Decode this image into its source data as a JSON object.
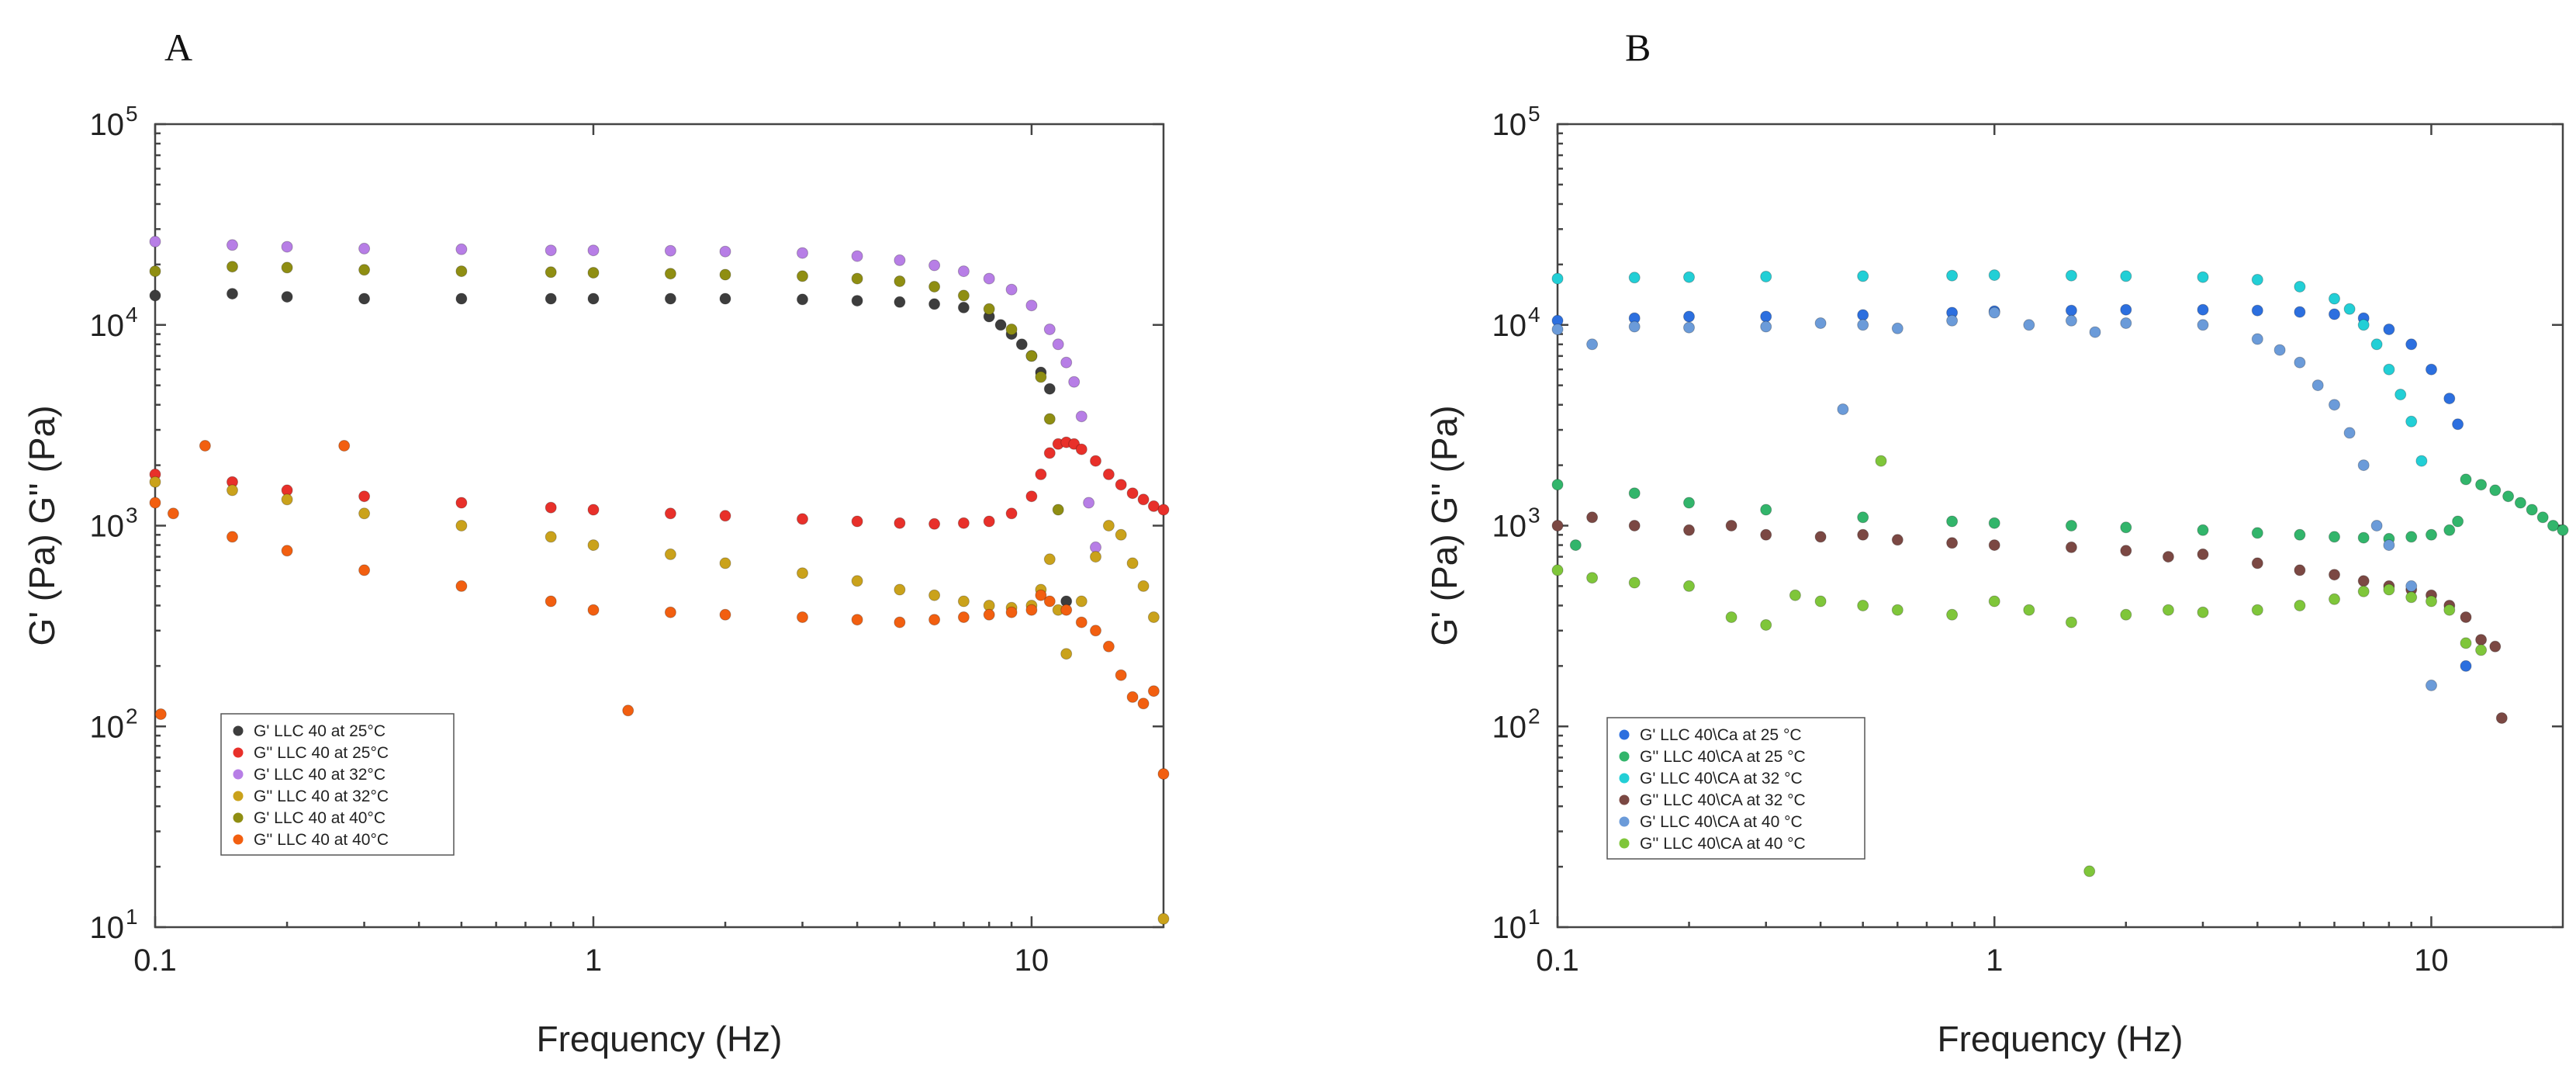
{
  "colors": {
    "dark": "#3d3d3d",
    "red": "#e8302a",
    "violet": "#b77ee6",
    "mustard": "#caa21b",
    "olive": "#8f8e12",
    "orange": "#f25f10",
    "blue": "#2c6fdf",
    "green": "#32b56b",
    "cyan": "#22cfd6",
    "brown": "#7b4843",
    "lightblue": "#6b9bd9",
    "lime": "#7fc63a"
  },
  "chart_data": [
    {
      "type": "scatter",
      "panel_label": "A",
      "xlabel": "Frequency (Hz)",
      "ylabel": "G' (Pa) G'' (Pa)",
      "xscale": "log",
      "yscale": "log",
      "xlim": [
        0.1,
        20
      ],
      "ylim": [
        10,
        100000
      ],
      "x_ticks": [
        0.1,
        1,
        10
      ],
      "x_tick_labels": [
        "0.1",
        "1",
        "10"
      ],
      "y_ticks": [
        10,
        100,
        1000,
        10000,
        100000
      ],
      "y_tick_labels": [
        "10",
        "10",
        "10",
        "10",
        "10"
      ],
      "y_tick_exponents": [
        "1",
        "2",
        "3",
        "4",
        "5"
      ],
      "legend_position": "lower-left",
      "series": [
        {
          "name": "G' LLC  40 at  25°C",
          "color": "#3d3d3d",
          "x": [
            0.1,
            0.15,
            0.2,
            0.3,
            0.5,
            0.8,
            1,
            1.5,
            2,
            3,
            4,
            5,
            6,
            7,
            8,
            8.5,
            9,
            9.5,
            10,
            10.5,
            11,
            12
          ],
          "y": [
            14000,
            14300,
            13800,
            13500,
            13500,
            13500,
            13500,
            13500,
            13500,
            13400,
            13200,
            13000,
            12700,
            12200,
            11000,
            10000,
            9000,
            8000,
            7000,
            5800,
            4800,
            420
          ]
        },
        {
          "name": "G'' LLC  40 at  25°C",
          "color": "#e8302a",
          "x": [
            0.1,
            0.15,
            0.2,
            0.3,
            0.5,
            0.8,
            1,
            1.5,
            2,
            3,
            4,
            5,
            6,
            7,
            8,
            9,
            10,
            10.5,
            11,
            11.5,
            12,
            12.5,
            13,
            14,
            15,
            16,
            17,
            18,
            19,
            20
          ],
          "y": [
            1800,
            1650,
            1500,
            1400,
            1300,
            1230,
            1200,
            1150,
            1120,
            1080,
            1050,
            1030,
            1020,
            1030,
            1050,
            1150,
            1400,
            1800,
            2300,
            2550,
            2600,
            2550,
            2400,
            2100,
            1800,
            1600,
            1450,
            1350,
            1250,
            1200
          ]
        },
        {
          "name": "G' LLC 40 at  32°C",
          "color": "#b77ee6",
          "x": [
            0.1,
            0.15,
            0.2,
            0.3,
            0.5,
            0.8,
            1,
            1.5,
            2,
            3,
            4,
            5,
            6,
            7,
            8,
            9,
            10,
            11,
            11.5,
            12,
            12.5,
            13,
            13.5,
            14
          ],
          "y": [
            26000,
            25000,
            24500,
            24000,
            23800,
            23500,
            23500,
            23400,
            23200,
            22800,
            22000,
            21000,
            19800,
            18500,
            17000,
            15000,
            12500,
            9500,
            8000,
            6500,
            5200,
            3500,
            1300,
            780
          ]
        },
        {
          "name": "G'' LLC 40  at  32°C",
          "color": "#caa21b",
          "x": [
            0.1,
            0.15,
            0.2,
            0.3,
            0.5,
            0.8,
            1,
            1.5,
            2,
            3,
            4,
            5,
            6,
            7,
            8,
            9,
            10,
            10.5,
            11,
            11.5,
            12,
            13,
            14,
            15,
            16,
            17,
            18,
            19,
            20
          ],
          "y": [
            1650,
            1500,
            1350,
            1150,
            1000,
            880,
            800,
            720,
            650,
            580,
            530,
            480,
            450,
            420,
            400,
            390,
            400,
            480,
            680,
            380,
            230,
            420,
            700,
            1000,
            900,
            650,
            500,
            350,
            11
          ]
        },
        {
          "name": "G' LLC 40 at 40°C",
          "color": "#8f8e12",
          "x": [
            0.1,
            0.15,
            0.2,
            0.3,
            0.5,
            0.8,
            1,
            1.5,
            2,
            3,
            4,
            5,
            6,
            7,
            8,
            9,
            10,
            10.5,
            11,
            11.5
          ],
          "y": [
            18500,
            19500,
            19300,
            18800,
            18500,
            18300,
            18200,
            18000,
            17800,
            17500,
            17000,
            16500,
            15500,
            14000,
            12000,
            9500,
            7000,
            5500,
            3400,
            1200
          ]
        },
        {
          "name": "G'' LLC 40  at  40°C",
          "color": "#f25f10",
          "x": [
            0.1,
            0.103,
            0.11,
            0.13,
            0.15,
            0.2,
            0.27,
            0.3,
            0.5,
            0.8,
            1,
            1.2,
            1.5,
            2,
            3,
            4,
            5,
            6,
            7,
            8,
            9,
            10,
            10.5,
            11,
            12,
            13,
            14,
            15,
            16,
            17,
            18,
            19,
            20
          ],
          "y": [
            1300,
            115,
            1150,
            2500,
            880,
            750,
            2500,
            600,
            500,
            420,
            380,
            120,
            370,
            360,
            350,
            340,
            330,
            340,
            350,
            360,
            370,
            380,
            450,
            420,
            380,
            330,
            300,
            250,
            180,
            140,
            130,
            150,
            58
          ]
        }
      ]
    },
    {
      "type": "scatter",
      "panel_label": "B",
      "xlabel": "Frequency (Hz)",
      "ylabel": "G' (Pa) G'' (Pa)",
      "xscale": "log",
      "yscale": "log",
      "xlim": [
        0.1,
        20
      ],
      "ylim": [
        10,
        100000
      ],
      "x_ticks": [
        0.1,
        1,
        10
      ],
      "x_tick_labels": [
        "0.1",
        "1",
        "10"
      ],
      "y_ticks": [
        10,
        100,
        1000,
        10000,
        100000
      ],
      "y_tick_labels": [
        "10",
        "10",
        "10",
        "10",
        "10"
      ],
      "y_tick_exponents": [
        "1",
        "2",
        "3",
        "4",
        "5"
      ],
      "legend_position": "lower-left",
      "series": [
        {
          "name": "G' LLC 40\\Ca at 25 °C",
          "color": "#2c6fdf",
          "x": [
            0.1,
            0.15,
            0.2,
            0.3,
            0.5,
            0.8,
            1,
            1.5,
            2,
            3,
            4,
            5,
            6,
            7,
            8,
            9,
            10,
            11,
            11.5,
            12
          ],
          "y": [
            10500,
            10800,
            11000,
            11000,
            11200,
            11500,
            11700,
            11800,
            11900,
            11900,
            11800,
            11600,
            11300,
            10800,
            9500,
            8000,
            6000,
            4300,
            3200,
            200
          ]
        },
        {
          "name": "G'' LLC 40\\CA at 25 °C",
          "color": "#32b56b",
          "x": [
            0.1,
            0.11,
            0.15,
            0.2,
            0.3,
            0.5,
            0.8,
            1,
            1.5,
            2,
            3,
            4,
            5,
            6,
            7,
            8,
            9,
            10,
            11,
            11.5,
            12,
            13,
            14,
            15,
            16,
            17,
            18,
            19,
            20
          ],
          "y": [
            1600,
            800,
            1450,
            1300,
            1200,
            1100,
            1050,
            1030,
            1000,
            980,
            950,
            920,
            900,
            880,
            870,
            860,
            880,
            900,
            950,
            1050,
            1700,
            1600,
            1500,
            1400,
            1300,
            1200,
            1100,
            1000,
            950
          ]
        },
        {
          "name": "G' LLC 40\\CA at 32 °C",
          "color": "#22cfd6",
          "x": [
            0.1,
            0.15,
            0.2,
            0.3,
            0.5,
            0.8,
            1,
            1.5,
            2,
            3,
            4,
            5,
            6,
            6.5,
            7,
            7.5,
            8,
            8.5,
            9,
            9.5
          ],
          "y": [
            17000,
            17200,
            17300,
            17400,
            17500,
            17600,
            17700,
            17600,
            17500,
            17300,
            16800,
            15500,
            13500,
            12000,
            10000,
            8000,
            6000,
            4500,
            3300,
            2100
          ]
        },
        {
          "name": "G'' LLC 40\\CA at 32 °C",
          "color": "#7b4843",
          "x": [
            0.1,
            0.12,
            0.15,
            0.2,
            0.25,
            0.3,
            0.4,
            0.5,
            0.6,
            0.8,
            1,
            1.5,
            2,
            2.5,
            3,
            4,
            5,
            6,
            7,
            8,
            9,
            10,
            11,
            12,
            13,
            14,
            14.5
          ],
          "y": [
            1000,
            1100,
            1000,
            950,
            1000,
            900,
            880,
            900,
            850,
            820,
            800,
            780,
            750,
            700,
            720,
            650,
            600,
            570,
            530,
            500,
            480,
            450,
            400,
            350,
            270,
            250,
            110
          ]
        },
        {
          "name": "G' LLC 40\\CA at 40 °C",
          "color": "#6b9bd9",
          "x": [
            0.1,
            0.12,
            0.15,
            0.2,
            0.3,
            0.4,
            0.45,
            0.5,
            0.6,
            0.8,
            1,
            1.2,
            1.5,
            1.7,
            2,
            3,
            4,
            4.5,
            5,
            5.5,
            6,
            6.5,
            7,
            7.5,
            8,
            9,
            10
          ],
          "y": [
            9500,
            8000,
            9800,
            9700,
            9800,
            10200,
            3800,
            10000,
            9600,
            10500,
            11500,
            10000,
            10500,
            9200,
            10200,
            10000,
            8500,
            7500,
            6500,
            5000,
            4000,
            2900,
            2000,
            1000,
            800,
            500,
            160
          ]
        },
        {
          "name": "G'' LLC 40\\CA at 40 °C",
          "color": "#7fc63a",
          "x": [
            0.1,
            0.12,
            0.15,
            0.2,
            0.25,
            0.3,
            0.35,
            0.4,
            0.5,
            0.55,
            0.6,
            0.8,
            1,
            1.2,
            1.5,
            1.65,
            2,
            2.5,
            3,
            4,
            5,
            6,
            7,
            8,
            9,
            10,
            11,
            12,
            13
          ],
          "y": [
            600,
            550,
            520,
            500,
            350,
            320,
            450,
            420,
            400,
            2100,
            380,
            360,
            420,
            380,
            330,
            19,
            360,
            380,
            370,
            380,
            400,
            430,
            470,
            480,
            440,
            420,
            380,
            260,
            240
          ]
        }
      ]
    }
  ]
}
